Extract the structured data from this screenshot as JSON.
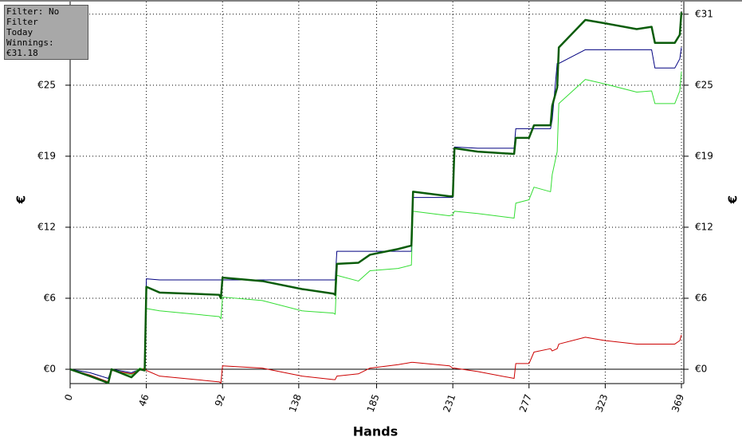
{
  "info": {
    "filter": "Filter: No Filter",
    "period": "Today",
    "winnings": "Winnings: €31.18"
  },
  "chart_data": {
    "type": "line",
    "x_label": "Hands",
    "y_label": "€",
    "x": [
      0,
      12,
      23,
      25,
      37,
      42,
      45,
      46,
      54,
      90,
      91,
      92,
      116,
      140,
      159,
      160,
      161,
      174,
      181,
      198,
      206,
      207,
      229,
      231,
      232,
      246,
      268,
      269,
      277,
      280,
      290,
      291,
      294,
      295,
      311,
      323,
      342,
      351,
      353,
      365,
      368,
      369
    ],
    "series": [
      {
        "color": "#000080",
        "width": 1,
        "values": [
          0,
          -0.3,
          -0.8,
          0,
          -0.3,
          0,
          0,
          7.9,
          7.8,
          7.8,
          7.8,
          7.8,
          7.8,
          7.8,
          7.8,
          7.8,
          10.3,
          10.3,
          10.3,
          10.3,
          10.3,
          15.0,
          15.0,
          15.0,
          19.4,
          19.3,
          19.3,
          21.0,
          21.0,
          21.0,
          21.0,
          21.8,
          26.7,
          26.7,
          27.9,
          27.9,
          27.9,
          27.9,
          26.3,
          26.3,
          27.1,
          28.1
        ]
      },
      {
        "color": "#33dd33",
        "width": 1,
        "values": [
          0,
          -0.6,
          -1.1,
          0,
          -0.5,
          0.1,
          0,
          5.3,
          5.1,
          4.6,
          4.4,
          6.3,
          6.0,
          5.1,
          4.9,
          4.8,
          8.2,
          7.7,
          8.6,
          8.8,
          9.1,
          13.8,
          13.4,
          13.5,
          13.8,
          13.6,
          13.2,
          14.5,
          14.8,
          15.9,
          15.5,
          17.0,
          19.0,
          23.2,
          25.3,
          24.9,
          24.2,
          24.3,
          23.2,
          23.2,
          24.3,
          26.0
        ]
      },
      {
        "color": "#cc0000",
        "width": 1,
        "values": [
          0,
          -0.5,
          -1.1,
          -0.1,
          -0.4,
          -0.1,
          0.1,
          -0.1,
          -0.6,
          -1.1,
          -1.2,
          0.3,
          0.1,
          -0.6,
          -0.9,
          -0.9,
          -0.6,
          -0.4,
          0.1,
          0.4,
          0.6,
          0.6,
          0.3,
          0.1,
          0.1,
          -0.2,
          -0.8,
          0.5,
          0.5,
          1.5,
          1.8,
          1.6,
          1.8,
          2.2,
          2.8,
          2.5,
          2.2,
          2.2,
          2.2,
          2.2,
          2.5,
          3.0
        ]
      },
      {
        "color": "#0a5c0a",
        "width": 2.5,
        "values": [
          0,
          -0.6,
          -1.2,
          0,
          -0.7,
          0,
          -0.1,
          7.2,
          6.7,
          6.5,
          6.2,
          8.0,
          7.7,
          7.0,
          6.6,
          6.5,
          9.2,
          9.3,
          10.0,
          10.5,
          10.8,
          15.5,
          15.1,
          15.1,
          19.3,
          19.0,
          18.8,
          20.2,
          20.2,
          21.3,
          21.3,
          23.0,
          24.6,
          28.1,
          30.5,
          30.2,
          29.7,
          29.9,
          28.5,
          28.5,
          29.2,
          31.18
        ]
      }
    ],
    "xlim": [
      0,
      369
    ],
    "xticks": [
      0,
      46,
      92,
      138,
      185,
      231,
      277,
      323,
      369
    ],
    "ylim": [
      -1.25,
      32.1
    ],
    "yticks": [
      {
        "value": 0,
        "label": "€0"
      },
      {
        "value": 6.2,
        "label": "€6"
      },
      {
        "value": 12.4,
        "label": "€12"
      },
      {
        "value": 18.6,
        "label": "€19"
      },
      {
        "value": 24.8,
        "label": "€25"
      },
      {
        "value": 31.0,
        "label": "€31"
      }
    ],
    "grid": true
  }
}
